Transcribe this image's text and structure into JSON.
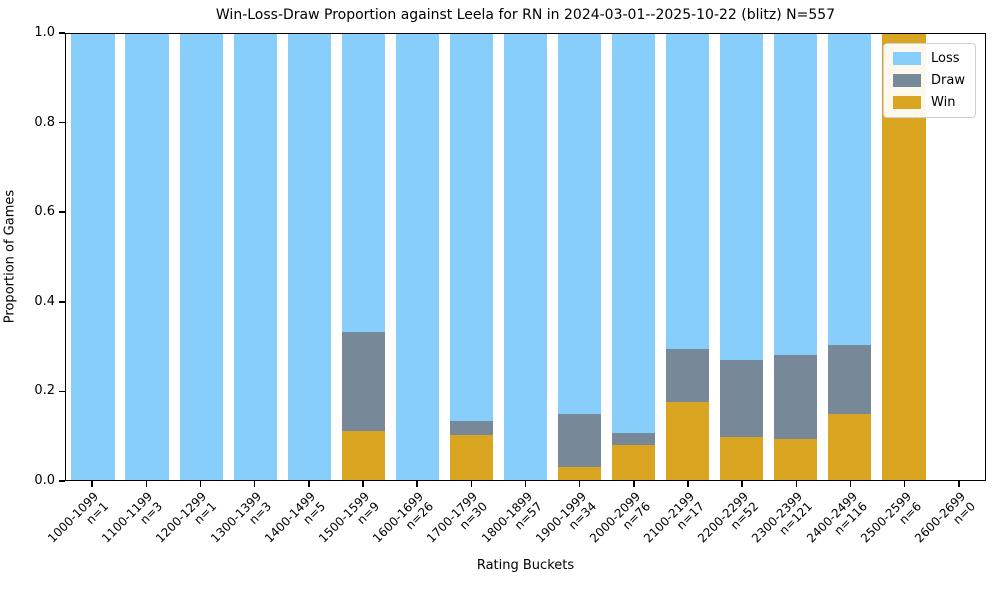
{
  "title": "Win-Loss-Draw Proportion against Leela for RN in 2024-03-01--2025-10-22 (blitz) N=557",
  "x_axis": {
    "label": "Rating Buckets",
    "tick_rotation_deg": 45
  },
  "y_axis": {
    "label": "Proportion of Games",
    "ticks": [
      "0.0",
      "0.2",
      "0.4",
      "0.6",
      "0.8",
      "1.0"
    ]
  },
  "legend": {
    "position": "upper-right",
    "items": [
      {
        "label": "Loss",
        "color": "#87cefa"
      },
      {
        "label": "Draw",
        "color": "#778899"
      },
      {
        "label": "Win",
        "color": "#daa520"
      }
    ]
  },
  "chart_data": {
    "type": "bar",
    "stacked": true,
    "title": "Win-Loss-Draw Proportion against Leela for RN in 2024-03-01--2025-10-22 (blitz) N=557",
    "xlabel": "Rating Buckets",
    "ylabel": "Proportion of Games",
    "ylim": [
      0.0,
      1.0
    ],
    "grid": false,
    "total_n": 557,
    "categories": [
      "1000-1099",
      "1100-1199",
      "1200-1299",
      "1300-1399",
      "1400-1499",
      "1500-1599",
      "1600-1699",
      "1700-1799",
      "1800-1899",
      "1900-1999",
      "2000-2099",
      "2100-2199",
      "2200-2299",
      "2300-2399",
      "2400-2499",
      "2500-2599",
      "2600-2699"
    ],
    "sample_sizes": [
      1,
      3,
      1,
      3,
      5,
      9,
      26,
      30,
      57,
      34,
      76,
      17,
      52,
      121,
      116,
      6,
      0
    ],
    "sample_size_prefix": "n=",
    "stack_order_bottom_to_top": [
      "Win",
      "Draw",
      "Loss"
    ],
    "series": [
      {
        "name": "Win",
        "color": "#daa520",
        "values": [
          0,
          0,
          0,
          0,
          0,
          0.111,
          0,
          0.1,
          0,
          0.029,
          0.079,
          0.176,
          0.096,
          0.091,
          0.147,
          1.0,
          0
        ]
      },
      {
        "name": "Draw",
        "color": "#778899",
        "values": [
          0,
          0,
          0,
          0,
          0,
          0.222,
          0,
          0.033,
          0,
          0.118,
          0.026,
          0.118,
          0.173,
          0.19,
          0.155,
          0,
          0
        ]
      },
      {
        "name": "Loss",
        "color": "#87cefa",
        "values": [
          1.0,
          1.0,
          1.0,
          1.0,
          1.0,
          0.667,
          1.0,
          0.867,
          1.0,
          0.853,
          0.895,
          0.706,
          0.731,
          0.719,
          0.698,
          0,
          0
        ]
      }
    ]
  }
}
